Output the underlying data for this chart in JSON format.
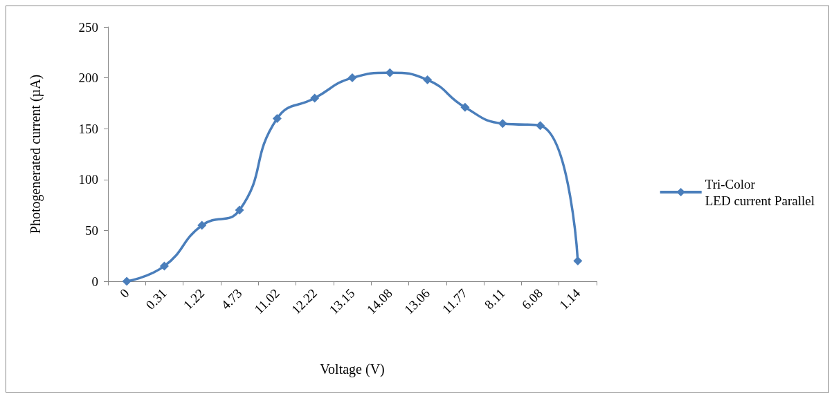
{
  "chart_data": {
    "type": "line",
    "xlabel": "Voltage (V)",
    "ylabel": "Photogenerated current (µA)",
    "categories": [
      "0",
      "0.31",
      "1.22",
      "4.73",
      "11.02",
      "12.22",
      "13.15",
      "14.08",
      "13.06",
      "11.77",
      "8.11",
      "6.08",
      "1.14"
    ],
    "series": [
      {
        "name": "Tri-Color\nLED current Parallel",
        "color": "#4a7ebb",
        "values": [
          0,
          15,
          55,
          70,
          160,
          180,
          200,
          205,
          198,
          171,
          155,
          153,
          20
        ]
      }
    ],
    "ylim": [
      0,
      250
    ],
    "yticks": [
      0,
      50,
      100,
      150,
      200,
      250
    ],
    "grid": false,
    "legend": "right",
    "marker": "diamond",
    "line_style": "solid"
  }
}
